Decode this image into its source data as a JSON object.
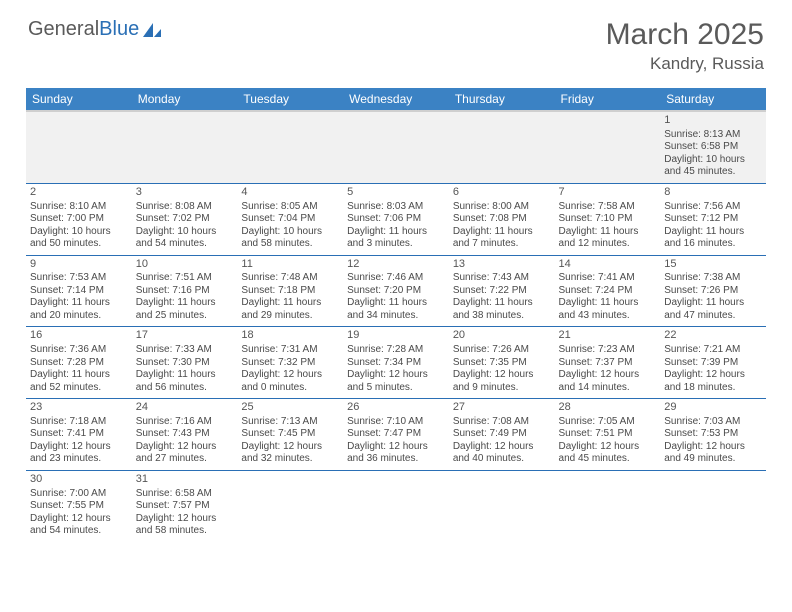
{
  "logo": {
    "text1": "General",
    "text2": "Blue",
    "sail_color": "#2a6fb5"
  },
  "header": {
    "month": "March 2025",
    "location": "Kandry, Russia"
  },
  "colors": {
    "header_bg": "#3b82c4",
    "header_text": "#ffffff",
    "row_divider": "#2a6fb5",
    "pad_bg": "#f1f1f1",
    "text": "#4a4a4a"
  },
  "day_headers": [
    "Sunday",
    "Monday",
    "Tuesday",
    "Wednesday",
    "Thursday",
    "Friday",
    "Saturday"
  ],
  "weeks": [
    [
      null,
      null,
      null,
      null,
      null,
      null,
      {
        "n": "1",
        "sr": "8:13 AM",
        "ss": "6:58 PM",
        "dl": "10 hours and 45 minutes."
      }
    ],
    [
      {
        "n": "2",
        "sr": "8:10 AM",
        "ss": "7:00 PM",
        "dl": "10 hours and 50 minutes."
      },
      {
        "n": "3",
        "sr": "8:08 AM",
        "ss": "7:02 PM",
        "dl": "10 hours and 54 minutes."
      },
      {
        "n": "4",
        "sr": "8:05 AM",
        "ss": "7:04 PM",
        "dl": "10 hours and 58 minutes."
      },
      {
        "n": "5",
        "sr": "8:03 AM",
        "ss": "7:06 PM",
        "dl": "11 hours and 3 minutes."
      },
      {
        "n": "6",
        "sr": "8:00 AM",
        "ss": "7:08 PM",
        "dl": "11 hours and 7 minutes."
      },
      {
        "n": "7",
        "sr": "7:58 AM",
        "ss": "7:10 PM",
        "dl": "11 hours and 12 minutes."
      },
      {
        "n": "8",
        "sr": "7:56 AM",
        "ss": "7:12 PM",
        "dl": "11 hours and 16 minutes."
      }
    ],
    [
      {
        "n": "9",
        "sr": "7:53 AM",
        "ss": "7:14 PM",
        "dl": "11 hours and 20 minutes."
      },
      {
        "n": "10",
        "sr": "7:51 AM",
        "ss": "7:16 PM",
        "dl": "11 hours and 25 minutes."
      },
      {
        "n": "11",
        "sr": "7:48 AM",
        "ss": "7:18 PM",
        "dl": "11 hours and 29 minutes."
      },
      {
        "n": "12",
        "sr": "7:46 AM",
        "ss": "7:20 PM",
        "dl": "11 hours and 34 minutes."
      },
      {
        "n": "13",
        "sr": "7:43 AM",
        "ss": "7:22 PM",
        "dl": "11 hours and 38 minutes."
      },
      {
        "n": "14",
        "sr": "7:41 AM",
        "ss": "7:24 PM",
        "dl": "11 hours and 43 minutes."
      },
      {
        "n": "15",
        "sr": "7:38 AM",
        "ss": "7:26 PM",
        "dl": "11 hours and 47 minutes."
      }
    ],
    [
      {
        "n": "16",
        "sr": "7:36 AM",
        "ss": "7:28 PM",
        "dl": "11 hours and 52 minutes."
      },
      {
        "n": "17",
        "sr": "7:33 AM",
        "ss": "7:30 PM",
        "dl": "11 hours and 56 minutes."
      },
      {
        "n": "18",
        "sr": "7:31 AM",
        "ss": "7:32 PM",
        "dl": "12 hours and 0 minutes."
      },
      {
        "n": "19",
        "sr": "7:28 AM",
        "ss": "7:34 PM",
        "dl": "12 hours and 5 minutes."
      },
      {
        "n": "20",
        "sr": "7:26 AM",
        "ss": "7:35 PM",
        "dl": "12 hours and 9 minutes."
      },
      {
        "n": "21",
        "sr": "7:23 AM",
        "ss": "7:37 PM",
        "dl": "12 hours and 14 minutes."
      },
      {
        "n": "22",
        "sr": "7:21 AM",
        "ss": "7:39 PM",
        "dl": "12 hours and 18 minutes."
      }
    ],
    [
      {
        "n": "23",
        "sr": "7:18 AM",
        "ss": "7:41 PM",
        "dl": "12 hours and 23 minutes."
      },
      {
        "n": "24",
        "sr": "7:16 AM",
        "ss": "7:43 PM",
        "dl": "12 hours and 27 minutes."
      },
      {
        "n": "25",
        "sr": "7:13 AM",
        "ss": "7:45 PM",
        "dl": "12 hours and 32 minutes."
      },
      {
        "n": "26",
        "sr": "7:10 AM",
        "ss": "7:47 PM",
        "dl": "12 hours and 36 minutes."
      },
      {
        "n": "27",
        "sr": "7:08 AM",
        "ss": "7:49 PM",
        "dl": "12 hours and 40 minutes."
      },
      {
        "n": "28",
        "sr": "7:05 AM",
        "ss": "7:51 PM",
        "dl": "12 hours and 45 minutes."
      },
      {
        "n": "29",
        "sr": "7:03 AM",
        "ss": "7:53 PM",
        "dl": "12 hours and 49 minutes."
      }
    ],
    [
      {
        "n": "30",
        "sr": "7:00 AM",
        "ss": "7:55 PM",
        "dl": "12 hours and 54 minutes."
      },
      {
        "n": "31",
        "sr": "6:58 AM",
        "ss": "7:57 PM",
        "dl": "12 hours and 58 minutes."
      },
      null,
      null,
      null,
      null,
      null
    ]
  ],
  "labels": {
    "sunrise": "Sunrise:",
    "sunset": "Sunset:",
    "daylight": "Daylight:"
  }
}
